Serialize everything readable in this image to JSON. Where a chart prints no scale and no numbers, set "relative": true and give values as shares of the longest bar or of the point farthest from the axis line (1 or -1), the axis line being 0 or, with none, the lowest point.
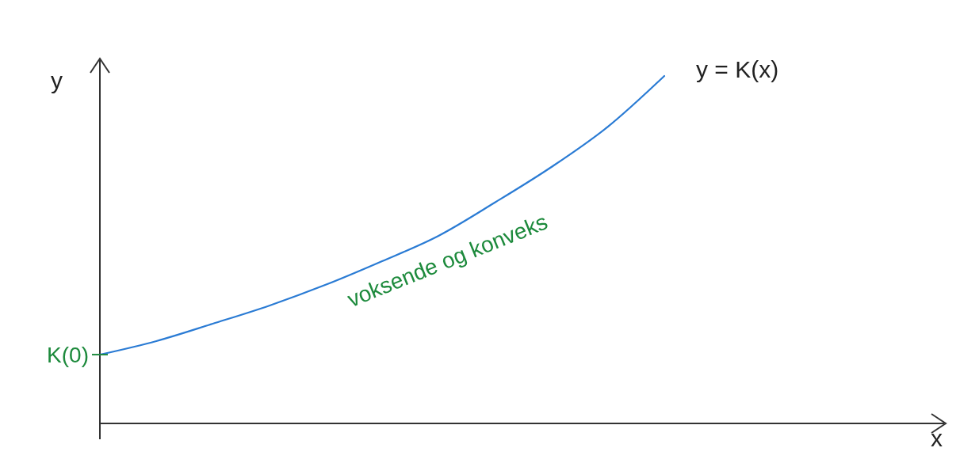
{
  "chart_data": {
    "type": "line",
    "relative": true,
    "ylabel": "y",
    "categories": [
      null,
      null,
      null,
      null,
      null,
      null,
      null,
      null,
      null,
      null,
      null
    ],
    "series": [
      {
        "name": "y = K(x)",
        "color": "#2a7bd4",
        "values": [
          0.198,
          0.237,
          0.287,
          0.339,
          0.399,
          0.467,
          0.54,
          0.636,
          0.738,
          0.854,
          1
        ]
      }
    ],
    "annotations": [
      "K(0)",
      "voksende og konveks",
      "x"
    ]
  }
}
